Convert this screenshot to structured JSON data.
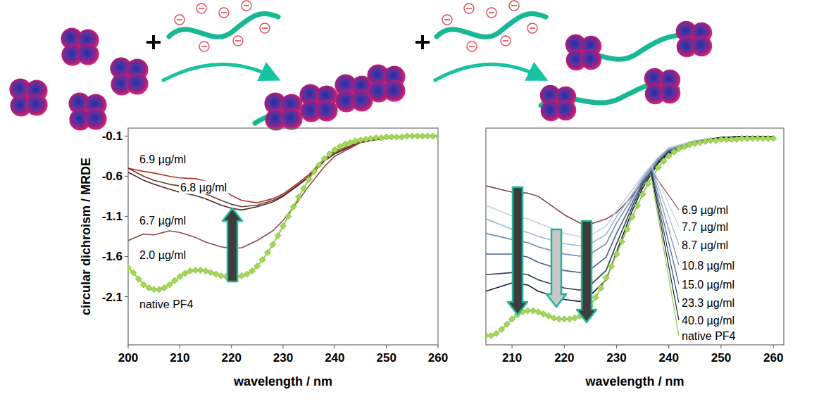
{
  "chart_data": [
    {
      "type": "line",
      "y_label": "circular dichroism / MRDE",
      "x_label": "wavelength / nm",
      "xlim": [
        200,
        260
      ],
      "xticks": [
        200,
        210,
        220,
        230,
        240,
        250,
        260
      ],
      "ylim": [
        -2.7,
        0
      ],
      "yticks": [
        -0.1,
        -0.6,
        -1.1,
        -1.6,
        -2.1
      ],
      "series": [
        {
          "name": "6.9 µg/ml",
          "color": "#b0342c",
          "x": [
            200,
            203,
            205,
            208,
            210,
            213,
            215,
            218,
            220,
            222,
            225,
            228,
            230,
            233,
            235,
            238,
            240,
            245,
            250,
            255,
            260
          ],
          "values": [
            -0.5,
            -0.54,
            -0.56,
            -0.6,
            -0.62,
            -0.63,
            -0.66,
            -0.75,
            -0.84,
            -0.9,
            -0.93,
            -0.88,
            -0.82,
            -0.68,
            -0.58,
            -0.38,
            -0.29,
            -0.17,
            -0.12,
            -0.1,
            -0.1
          ]
        },
        {
          "name": "6.8 µg/ml",
          "color": "#6e3b36",
          "x": [
            200,
            203,
            205,
            208,
            210,
            213,
            215,
            218,
            220,
            222,
            225,
            228,
            230,
            233,
            235,
            238,
            240,
            245,
            250,
            255,
            260
          ],
          "values": [
            -0.5,
            -0.6,
            -0.65,
            -0.7,
            -0.72,
            -0.77,
            -0.82,
            -0.9,
            -0.95,
            -0.98,
            -0.96,
            -0.9,
            -0.84,
            -0.7,
            -0.6,
            -0.4,
            -0.31,
            -0.18,
            -0.12,
            -0.1,
            -0.1
          ]
        },
        {
          "name": "6.7 µg/ml",
          "color": "#4a2a2a",
          "x": [
            200,
            203,
            205,
            208,
            210,
            213,
            215,
            218,
            220,
            222,
            225,
            228,
            230,
            233,
            235,
            238,
            240,
            245,
            250,
            255,
            260
          ],
          "values": [
            -0.55,
            -0.65,
            -0.7,
            -0.76,
            -0.8,
            -0.84,
            -0.88,
            -0.96,
            -1.0,
            -1.02,
            -0.98,
            -0.92,
            -0.85,
            -0.71,
            -0.61,
            -0.41,
            -0.32,
            -0.18,
            -0.12,
            -0.1,
            -0.1
          ]
        },
        {
          "name": "2.0 µg/ml",
          "color": "#8a4b47",
          "x": [
            200,
            203,
            205,
            208,
            210,
            213,
            215,
            218,
            220,
            222,
            225,
            228,
            230,
            233,
            235,
            238,
            240,
            245,
            250,
            255,
            260
          ],
          "values": [
            -1.4,
            -1.32,
            -1.33,
            -1.28,
            -1.3,
            -1.36,
            -1.42,
            -1.48,
            -1.5,
            -1.49,
            -1.4,
            -1.28,
            -1.15,
            -0.9,
            -0.72,
            -0.48,
            -0.35,
            -0.18,
            -0.12,
            -0.1,
            -0.1
          ]
        },
        {
          "name": "native PF4",
          "color": "#8dc63f",
          "marker": "diamond",
          "x": [
            200,
            201,
            202,
            203,
            204,
            205,
            206,
            207,
            208,
            209,
            210,
            211,
            212,
            213,
            214,
            215,
            216,
            217,
            218,
            219,
            220,
            221,
            222,
            223,
            224,
            225,
            226,
            227,
            228,
            229,
            230,
            231,
            232,
            233,
            234,
            235,
            236,
            237,
            238,
            239,
            240,
            241,
            242,
            243,
            244,
            245,
            246,
            247,
            248,
            249,
            250,
            251,
            252,
            253,
            254,
            255,
            256,
            257,
            258,
            259,
            260
          ],
          "values": [
            -1.74,
            -1.8,
            -1.88,
            -1.95,
            -1.99,
            -2.01,
            -2.01,
            -1.99,
            -1.95,
            -1.9,
            -1.85,
            -1.81,
            -1.78,
            -1.77,
            -1.77,
            -1.78,
            -1.8,
            -1.82,
            -1.84,
            -1.85,
            -1.85,
            -1.85,
            -1.84,
            -1.82,
            -1.78,
            -1.72,
            -1.64,
            -1.55,
            -1.45,
            -1.34,
            -1.22,
            -1.1,
            -0.98,
            -0.86,
            -0.75,
            -0.64,
            -0.54,
            -0.46,
            -0.38,
            -0.32,
            -0.27,
            -0.23,
            -0.2,
            -0.18,
            -0.16,
            -0.15,
            -0.14,
            -0.13,
            -0.12,
            -0.12,
            -0.11,
            -0.11,
            -0.11,
            -0.11,
            -0.1,
            -0.1,
            -0.1,
            -0.1,
            -0.1,
            -0.1,
            -0.1
          ]
        }
      ]
    },
    {
      "type": "line",
      "x_label": "wavelength / nm",
      "xlim": [
        205,
        262
      ],
      "xticks": [
        210,
        220,
        230,
        240,
        250,
        260
      ],
      "ylim": [
        -2.1,
        0
      ],
      "tick_labels": "x",
      "series": [
        {
          "name": "6.9 µg/ml",
          "color": "#7b4a44",
          "x": [
            205,
            210,
            213,
            215,
            220,
            223,
            225,
            228,
            230,
            233,
            235,
            238,
            240,
            245,
            250,
            255,
            260
          ],
          "values": [
            -0.56,
            -0.62,
            -0.63,
            -0.66,
            -0.84,
            -0.92,
            -0.93,
            -0.88,
            -0.82,
            -0.66,
            -0.52,
            -0.33,
            -0.25,
            -0.15,
            -0.11,
            -0.1,
            -0.1
          ]
        },
        {
          "name": "7.7 µg/ml",
          "color": "#c3d0e3",
          "x": [
            205,
            210,
            213,
            215,
            220,
            223,
            225,
            228,
            230,
            233,
            235,
            238,
            240,
            245,
            250,
            255,
            260
          ],
          "values": [
            -0.75,
            -0.85,
            -0.88,
            -0.92,
            -1.02,
            -1.05,
            -1.04,
            -0.95,
            -0.8,
            -0.6,
            -0.46,
            -0.28,
            -0.19,
            -0.12,
            -0.09,
            -0.08,
            -0.08
          ]
        },
        {
          "name": "8.7 µg/ml",
          "color": "#9fb4d2",
          "x": [
            205,
            210,
            213,
            215,
            220,
            223,
            225,
            228,
            230,
            233,
            235,
            238,
            240,
            245,
            250,
            255,
            260
          ],
          "values": [
            -0.88,
            -0.98,
            -1.01,
            -1.05,
            -1.12,
            -1.14,
            -1.12,
            -1.03,
            -0.86,
            -0.64,
            -0.48,
            -0.29,
            -0.2,
            -0.13,
            -0.09,
            -0.08,
            -0.08
          ]
        },
        {
          "name": "10.8 µg/ml",
          "color": "#6f8db5",
          "x": [
            205,
            210,
            213,
            215,
            220,
            223,
            225,
            228,
            230,
            233,
            235,
            238,
            240,
            245,
            250,
            255,
            260
          ],
          "values": [
            -1.02,
            -1.08,
            -1.11,
            -1.15,
            -1.22,
            -1.24,
            -1.22,
            -1.12,
            -0.92,
            -0.68,
            -0.5,
            -0.3,
            -0.21,
            -0.13,
            -0.09,
            -0.08,
            -0.08
          ]
        },
        {
          "name": "15.0 µg/ml",
          "color": "#45618a",
          "x": [
            205,
            210,
            213,
            215,
            220,
            223,
            225,
            228,
            230,
            233,
            235,
            238,
            240,
            245,
            250,
            255,
            260
          ],
          "values": [
            -1.22,
            -1.22,
            -1.25,
            -1.3,
            -1.38,
            -1.4,
            -1.37,
            -1.25,
            -1.02,
            -0.72,
            -0.53,
            -0.32,
            -0.22,
            -0.14,
            -0.09,
            -0.08,
            -0.08
          ]
        },
        {
          "name": "23.3 µg/ml",
          "color": "#2b3c58",
          "x": [
            205,
            210,
            213,
            215,
            220,
            223,
            225,
            228,
            230,
            233,
            235,
            238,
            240,
            245,
            250,
            255,
            260
          ],
          "values": [
            -1.42,
            -1.4,
            -1.42,
            -1.47,
            -1.55,
            -1.57,
            -1.52,
            -1.38,
            -1.12,
            -0.76,
            -0.55,
            -0.33,
            -0.23,
            -0.14,
            -0.09,
            -0.08,
            -0.08
          ]
        },
        {
          "name": "40.0 µg/ml",
          "color": "#141c2b",
          "x": [
            205,
            210,
            213,
            215,
            220,
            223,
            225,
            228,
            230,
            233,
            235,
            238,
            240,
            245,
            250,
            255,
            260
          ],
          "values": [
            -1.58,
            -1.5,
            -1.52,
            -1.58,
            -1.66,
            -1.68,
            -1.62,
            -1.47,
            -1.2,
            -0.8,
            -0.58,
            -0.34,
            -0.24,
            -0.15,
            -0.09,
            -0.08,
            -0.08
          ]
        },
        {
          "name": "native PF4",
          "color": "#8dc63f",
          "marker": "diamond",
          "x": [
            205,
            206,
            207,
            208,
            209,
            210,
            211,
            212,
            213,
            214,
            215,
            216,
            217,
            218,
            219,
            220,
            221,
            222,
            223,
            224,
            225,
            226,
            227,
            228,
            229,
            230,
            231,
            232,
            233,
            234,
            235,
            236,
            237,
            238,
            239,
            240,
            241,
            242,
            243,
            244,
            245,
            246,
            247,
            248,
            249,
            250,
            251,
            252,
            253,
            254,
            255,
            256,
            257,
            258,
            259,
            260
          ],
          "values": [
            -2.01,
            -2.01,
            -1.99,
            -1.95,
            -1.9,
            -1.85,
            -1.81,
            -1.78,
            -1.77,
            -1.77,
            -1.78,
            -1.8,
            -1.82,
            -1.84,
            -1.85,
            -1.85,
            -1.85,
            -1.84,
            -1.82,
            -1.78,
            -1.72,
            -1.64,
            -1.55,
            -1.45,
            -1.34,
            -1.22,
            -1.1,
            -0.98,
            -0.86,
            -0.75,
            -0.64,
            -0.54,
            -0.46,
            -0.38,
            -0.32,
            -0.27,
            -0.23,
            -0.2,
            -0.18,
            -0.16,
            -0.15,
            -0.14,
            -0.13,
            -0.12,
            -0.12,
            -0.11,
            -0.11,
            -0.11,
            -0.11,
            -0.1,
            -0.1,
            -0.1,
            -0.1,
            -0.1,
            -0.1,
            -0.1
          ]
        }
      ]
    }
  ]
}
